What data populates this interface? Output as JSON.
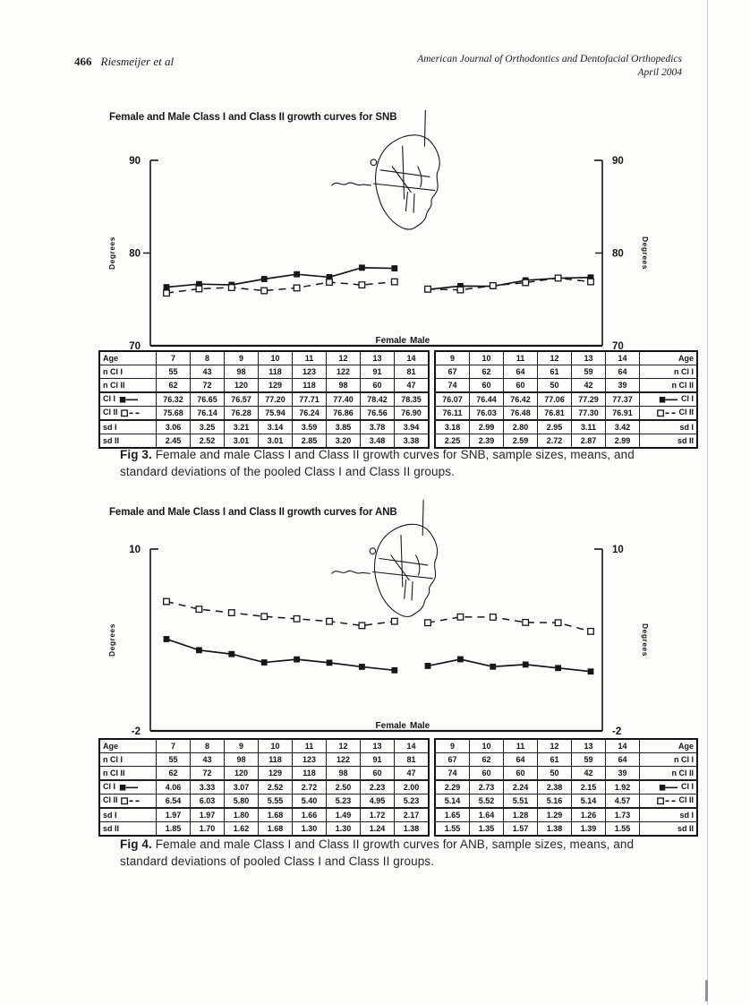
{
  "header": {
    "page_number": "466",
    "authors": "Riesmeijer et al",
    "journal_line1": "American Journal of Orthodontics and Dentofacial Orthopedics",
    "journal_line2": "April 2004"
  },
  "colors": {
    "ink": "#161616",
    "paper": "#fdfdfc"
  },
  "chart_data": [
    {
      "type": "line",
      "title": "Female and Male Class I and Class II growth curves for SNB",
      "ylabel": "Degrees",
      "ylabel_right": "Degrees",
      "xlabel": "",
      "ylim": [
        70,
        90
      ],
      "yticks": [
        70,
        80,
        90
      ],
      "grid": false,
      "legend_position": "in-table-row-labels",
      "panels": [
        {
          "label": "Female",
          "x": [
            7,
            8,
            9,
            10,
            11,
            12,
            13,
            14
          ],
          "series": [
            {
              "name": "Cl I",
              "marker": "filled-square",
              "line": "solid",
              "values": [
                76.32,
                76.65,
                76.57,
                77.2,
                77.71,
                77.4,
                78.42,
                78.35
              ]
            },
            {
              "name": "Cl II",
              "marker": "open-square",
              "line": "dashed",
              "values": [
                75.68,
                76.14,
                76.28,
                75.94,
                76.24,
                76.86,
                76.56,
                76.9
              ]
            }
          ]
        },
        {
          "label": "Male",
          "x": [
            9,
            10,
            11,
            12,
            13,
            14
          ],
          "series": [
            {
              "name": "Cl I",
              "marker": "filled-square",
              "line": "solid",
              "values": [
                76.07,
                76.44,
                76.42,
                77.06,
                77.29,
                77.37
              ]
            },
            {
              "name": "Cl II",
              "marker": "open-square",
              "line": "dashed",
              "values": [
                76.11,
                76.03,
                76.48,
                76.81,
                77.3,
                76.91
              ]
            }
          ]
        }
      ]
    },
    {
      "type": "line",
      "title": "Female and Male Class I and Class II growth curves for ANB",
      "ylabel": "Degrees",
      "ylabel_right": "Degrees",
      "xlabel": "",
      "ylim": [
        -2,
        10
      ],
      "yticks": [
        -2,
        10
      ],
      "grid": false,
      "legend_position": "in-table-row-labels",
      "panels": [
        {
          "label": "Female",
          "x": [
            7,
            8,
            9,
            10,
            11,
            12,
            13,
            14
          ],
          "series": [
            {
              "name": "Cl I",
              "marker": "filled-square",
              "line": "solid",
              "values": [
                4.06,
                3.33,
                3.07,
                2.52,
                2.72,
                2.5,
                2.23,
                2.0
              ]
            },
            {
              "name": "Cl II",
              "marker": "open-square",
              "line": "dashed",
              "values": [
                6.54,
                6.03,
                5.8,
                5.55,
                5.4,
                5.23,
                4.95,
                5.23
              ]
            }
          ]
        },
        {
          "label": "Male",
          "x": [
            9,
            10,
            11,
            12,
            13,
            14
          ],
          "series": [
            {
              "name": "Cl I",
              "marker": "filled-square",
              "line": "solid",
              "values": [
                2.29,
                2.73,
                2.24,
                2.38,
                2.15,
                1.92
              ]
            },
            {
              "name": "Cl II",
              "marker": "open-square",
              "line": "dashed",
              "values": [
                5.14,
                5.52,
                5.51,
                5.16,
                5.14,
                4.57
              ]
            }
          ]
        }
      ]
    }
  ],
  "figures": [
    {
      "caption_tag": "Fig 3.",
      "caption_text": " Female and male Class I and Class II growth curves for SNB, sample sizes, means, and standard deviations of the pooled Class I and Class II groups.",
      "table": {
        "female": {
          "label_side": "left",
          "rows": [
            {
              "label": "Age",
              "values": [
                "7",
                "8",
                "9",
                "10",
                "11",
                "12",
                "13",
                "14"
              ]
            },
            {
              "label": "n Cl I",
              "values": [
                "55",
                "43",
                "98",
                "118",
                "123",
                "122",
                "91",
                "81"
              ]
            },
            {
              "label": "n Cl II",
              "values": [
                "62",
                "72",
                "120",
                "129",
                "118",
                "98",
                "60",
                "47"
              ],
              "thick": true
            },
            {
              "label": "Cl I",
              "legend": "filled",
              "values": [
                "76.32",
                "76.65",
                "76.57",
                "77.20",
                "77.71",
                "77.40",
                "78.42",
                "78.35"
              ]
            },
            {
              "label": "Cl II",
              "legend": "open",
              "values": [
                "75.68",
                "76.14",
                "76.28",
                "75.94",
                "76.24",
                "76.86",
                "76.56",
                "76.90"
              ],
              "thick": true
            },
            {
              "label": "sd I",
              "values": [
                "3.06",
                "3.25",
                "3.21",
                "3.14",
                "3.59",
                "3.85",
                "3.78",
                "3.94"
              ]
            },
            {
              "label": "sd II",
              "values": [
                "2.45",
                "2.52",
                "3.01",
                "3.01",
                "2.85",
                "3.20",
                "3.48",
                "3.38"
              ]
            }
          ]
        },
        "male": {
          "label_side": "right",
          "rows": [
            {
              "label": "Age",
              "values": [
                "9",
                "10",
                "11",
                "12",
                "13",
                "14"
              ]
            },
            {
              "label": "n Cl I",
              "values": [
                "67",
                "62",
                "64",
                "61",
                "59",
                "64"
              ]
            },
            {
              "label": "n Cl II",
              "values": [
                "74",
                "60",
                "60",
                "50",
                "42",
                "39"
              ],
              "thick": true
            },
            {
              "label": "Cl I",
              "legend": "filled",
              "values": [
                "76.07",
                "76.44",
                "76.42",
                "77.06",
                "77.29",
                "77.37"
              ]
            },
            {
              "label": "Cl II",
              "legend": "open",
              "values": [
                "76.11",
                "76.03",
                "76.48",
                "76.81",
                "77.30",
                "76.91"
              ],
              "thick": true
            },
            {
              "label": "sd I",
              "values": [
                "3.18",
                "2.99",
                "2.80",
                "2.95",
                "3.11",
                "3.42"
              ]
            },
            {
              "label": "sd II",
              "values": [
                "2.25",
                "2.39",
                "2.59",
                "2.72",
                "2.87",
                "2.99"
              ]
            }
          ]
        }
      }
    },
    {
      "caption_tag": "Fig 4.",
      "caption_text": " Female and male Class I and Class II growth curves for ANB, sample sizes, means, and standard deviations of pooled Class I and Class II groups.",
      "table": {
        "female": {
          "label_side": "left",
          "rows": [
            {
              "label": "Age",
              "values": [
                "7",
                "8",
                "9",
                "10",
                "11",
                "12",
                "13",
                "14"
              ]
            },
            {
              "label": "n Cl I",
              "values": [
                "55",
                "43",
                "98",
                "118",
                "123",
                "122",
                "91",
                "81"
              ]
            },
            {
              "label": "n Cl II",
              "values": [
                "62",
                "72",
                "120",
                "129",
                "118",
                "98",
                "60",
                "47"
              ],
              "thick": true
            },
            {
              "label": "Cl I",
              "legend": "filled",
              "values": [
                "4.06",
                "3.33",
                "3.07",
                "2.52",
                "2.72",
                "2.50",
                "2.23",
                "2.00"
              ]
            },
            {
              "label": "Cl II",
              "legend": "open",
              "values": [
                "6.54",
                "6.03",
                "5.80",
                "5.55",
                "5.40",
                "5.23",
                "4.95",
                "5.23"
              ],
              "thick": true
            },
            {
              "label": "sd I",
              "values": [
                "1.97",
                "1.97",
                "1.80",
                "1.68",
                "1.66",
                "1.49",
                "1.72",
                "2.17"
              ]
            },
            {
              "label": "sd II",
              "values": [
                "1.85",
                "1.70",
                "1.62",
                "1.68",
                "1.30",
                "1.30",
                "1.24",
                "1.38"
              ]
            }
          ]
        },
        "male": {
          "label_side": "right",
          "rows": [
            {
              "label": "Age",
              "values": [
                "9",
                "10",
                "11",
                "12",
                "13",
                "14"
              ]
            },
            {
              "label": "n Cl I",
              "values": [
                "67",
                "62",
                "64",
                "61",
                "59",
                "64"
              ]
            },
            {
              "label": "n Cl II",
              "values": [
                "74",
                "60",
                "60",
                "50",
                "42",
                "39"
              ],
              "thick": true
            },
            {
              "label": "Cl I",
              "legend": "filled",
              "values": [
                "2.29",
                "2.73",
                "2.24",
                "2.38",
                "2.15",
                "1.92"
              ]
            },
            {
              "label": "Cl II",
              "legend": "open",
              "values": [
                "5.14",
                "5.52",
                "5.51",
                "5.16",
                "5.14",
                "4.57"
              ],
              "thick": true
            },
            {
              "label": "sd I",
              "values": [
                "1.65",
                "1.64",
                "1.28",
                "1.29",
                "1.26",
                "1.73"
              ]
            },
            {
              "label": "sd II",
              "values": [
                "1.55",
                "1.35",
                "1.57",
                "1.38",
                "1.39",
                "1.55"
              ]
            }
          ]
        }
      }
    }
  ]
}
